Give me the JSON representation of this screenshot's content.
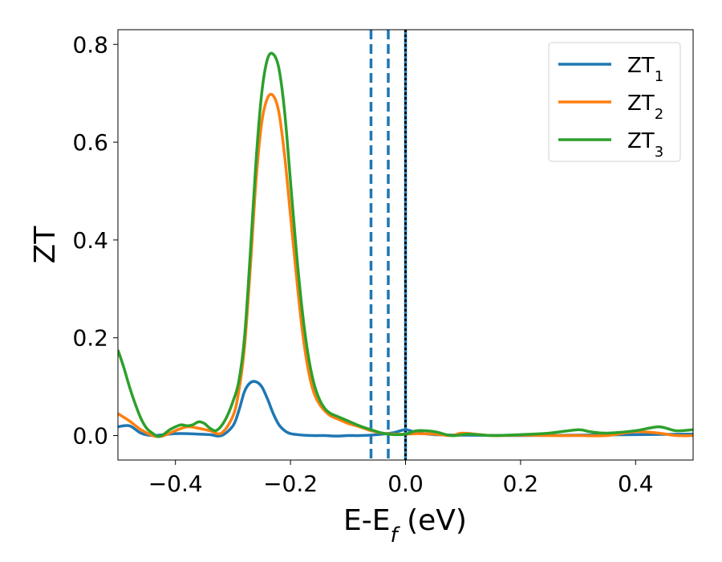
{
  "chart_data": {
    "type": "line",
    "xlabel_main": "E-E",
    "xlabel_sub": "f",
    "xlabel_unit": " (eV)",
    "ylabel": "ZT",
    "xlim": [
      -0.5,
      0.5
    ],
    "ylim": [
      -0.05,
      0.83
    ],
    "x_ticks": [
      -0.4,
      -0.2,
      0.0,
      0.2,
      0.4
    ],
    "x_tick_labels": [
      "−0.4",
      "−0.2",
      "0.0",
      "0.2",
      "0.4"
    ],
    "y_ticks": [
      0.0,
      0.2,
      0.4,
      0.6,
      0.8
    ],
    "y_tick_labels": [
      "0.0",
      "0.2",
      "0.4",
      "0.6",
      "0.8"
    ],
    "grid": false,
    "legend_position": "top-right",
    "vertical_lines": [
      {
        "x": -0.06,
        "style": "dashed",
        "color": "#1f77b4"
      },
      {
        "x": -0.03,
        "style": "dashed",
        "color": "#1f77b4"
      },
      {
        "x": 0.0,
        "style": "solid",
        "color": "#1f77b4"
      },
      {
        "x": 0.0,
        "style": "dotted",
        "color": "#000000"
      }
    ],
    "series": [
      {
        "name": "ZT",
        "sub": "1",
        "color": "#1f77b4",
        "x": [
          -0.5,
          -0.48,
          -0.46,
          -0.44,
          -0.42,
          -0.4,
          -0.38,
          -0.36,
          -0.34,
          -0.32,
          -0.3,
          -0.29,
          -0.28,
          -0.27,
          -0.26,
          -0.25,
          -0.24,
          -0.23,
          -0.22,
          -0.21,
          -0.2,
          -0.18,
          -0.16,
          -0.14,
          -0.12,
          -0.1,
          -0.08,
          -0.06,
          -0.04,
          -0.02,
          0.0,
          0.02,
          0.05,
          0.1,
          0.2,
          0.3,
          0.4,
          0.5
        ],
        "y": [
          0.018,
          0.02,
          0.005,
          0.0,
          0.002,
          0.004,
          0.004,
          0.003,
          0.002,
          0.0,
          0.02,
          0.05,
          0.09,
          0.108,
          0.11,
          0.1,
          0.075,
          0.045,
          0.022,
          0.01,
          0.004,
          0.001,
          0.0,
          0.0,
          -0.001,
          0.0,
          0.0,
          0.001,
          0.003,
          0.006,
          0.012,
          0.006,
          0.002,
          0.001,
          0.0,
          0.001,
          0.002,
          0.003
        ]
      },
      {
        "name": "ZT",
        "sub": "2",
        "color": "#ff7f0e",
        "x": [
          -0.5,
          -0.48,
          -0.46,
          -0.44,
          -0.43,
          -0.42,
          -0.4,
          -0.38,
          -0.36,
          -0.34,
          -0.32,
          -0.3,
          -0.29,
          -0.28,
          -0.27,
          -0.26,
          -0.25,
          -0.24,
          -0.23,
          -0.22,
          -0.21,
          -0.2,
          -0.19,
          -0.18,
          -0.17,
          -0.16,
          -0.15,
          -0.14,
          -0.13,
          -0.12,
          -0.11,
          -0.1,
          -0.08,
          -0.06,
          -0.04,
          -0.02,
          0.0,
          0.02,
          0.05,
          0.08,
          0.1,
          0.15,
          0.2,
          0.25,
          0.3,
          0.35,
          0.4,
          0.44,
          0.47,
          0.5
        ],
        "y": [
          0.045,
          0.03,
          0.012,
          0.0,
          -0.002,
          0.0,
          0.01,
          0.018,
          0.015,
          0.01,
          0.005,
          0.04,
          0.09,
          0.18,
          0.34,
          0.52,
          0.64,
          0.69,
          0.695,
          0.66,
          0.57,
          0.45,
          0.33,
          0.22,
          0.14,
          0.09,
          0.065,
          0.05,
          0.04,
          0.035,
          0.03,
          0.025,
          0.018,
          0.01,
          0.005,
          0.003,
          0.003,
          0.004,
          0.003,
          0.0,
          0.005,
          0.0,
          0.001,
          0.0,
          0.0,
          0.0,
          0.008,
          0.005,
          0.0,
          0.0
        ]
      },
      {
        "name": "ZT",
        "sub": "3",
        "color": "#2ca02c",
        "x": [
          -0.5,
          -0.49,
          -0.48,
          -0.47,
          -0.46,
          -0.45,
          -0.44,
          -0.43,
          -0.42,
          -0.41,
          -0.4,
          -0.39,
          -0.38,
          -0.37,
          -0.36,
          -0.35,
          -0.34,
          -0.33,
          -0.32,
          -0.31,
          -0.3,
          -0.29,
          -0.28,
          -0.27,
          -0.26,
          -0.25,
          -0.24,
          -0.23,
          -0.22,
          -0.21,
          -0.2,
          -0.19,
          -0.18,
          -0.17,
          -0.16,
          -0.15,
          -0.14,
          -0.13,
          -0.12,
          -0.11,
          -0.1,
          -0.08,
          -0.06,
          -0.04,
          -0.02,
          0.0,
          0.02,
          0.05,
          0.08,
          0.11,
          0.15,
          0.2,
          0.25,
          0.3,
          0.32,
          0.35,
          0.4,
          0.44,
          0.47,
          0.5
        ],
        "y": [
          0.175,
          0.14,
          0.1,
          0.065,
          0.035,
          0.015,
          0.005,
          -0.002,
          0.003,
          0.012,
          0.018,
          0.022,
          0.02,
          0.022,
          0.028,
          0.025,
          0.015,
          0.01,
          0.02,
          0.04,
          0.07,
          0.11,
          0.2,
          0.37,
          0.56,
          0.7,
          0.77,
          0.78,
          0.75,
          0.66,
          0.52,
          0.38,
          0.26,
          0.17,
          0.11,
          0.075,
          0.055,
          0.045,
          0.04,
          0.035,
          0.03,
          0.02,
          0.012,
          0.005,
          0.002,
          0.003,
          0.01,
          0.008,
          0.0,
          0.003,
          0.0,
          0.002,
          0.005,
          0.012,
          0.008,
          0.005,
          0.01,
          0.018,
          0.01,
          0.012
        ]
      }
    ]
  }
}
